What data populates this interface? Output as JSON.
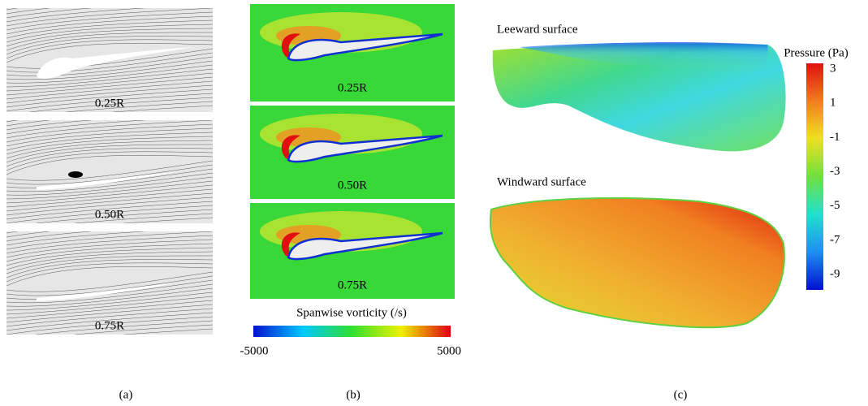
{
  "panel_a": {
    "label": "(a)",
    "sections": [
      "0.25R",
      "0.50R",
      "0.75R"
    ]
  },
  "panel_b": {
    "label": "(b)",
    "sections": [
      "0.25R",
      "0.50R",
      "0.75R"
    ],
    "colorbar": {
      "title": "Spanwise vorticity (/s)",
      "min": -5000,
      "max": 5000
    }
  },
  "panel_c": {
    "label": "(c)",
    "surfaces": [
      "Leeward surface",
      "Windward surface"
    ],
    "colorbar": {
      "title": "Pressure (Pa)",
      "ticks": [
        3,
        1,
        -1,
        -3,
        -5,
        -7,
        -9
      ]
    }
  }
}
